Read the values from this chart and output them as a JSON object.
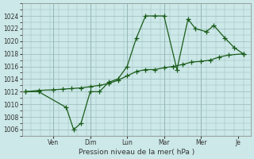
{
  "background_color": "#cce8e8",
  "plot_bg_color": "#cce8e8",
  "grid_color": "#99bbbb",
  "line_color": "#1a5c1a",
  "xlabel": "Pression niveau de la mer( hPa )",
  "ylim": [
    1005,
    1026
  ],
  "yticks": [
    1006,
    1008,
    1010,
    1012,
    1014,
    1016,
    1018,
    1020,
    1022,
    1024
  ],
  "xtick_positions": [
    1.5,
    3.5,
    5.5,
    7.5,
    9.5,
    11.5
  ],
  "xtick_labels": [
    "Ven",
    "Dim",
    "Lun",
    "Mar",
    "Mer",
    "Je"
  ],
  "vlines": [
    1.5,
    3.5,
    5.5,
    7.5,
    9.5
  ],
  "xlim": [
    -0.2,
    12.2
  ],
  "series1_x": [
    0.0,
    0.7,
    2.2,
    2.6,
    3.0,
    3.5,
    4.0,
    4.5,
    5.0,
    5.5,
    6.0,
    6.5,
    7.0,
    7.5,
    8.2,
    8.8,
    9.2,
    9.8,
    10.2,
    10.8,
    11.3,
    11.8
  ],
  "series1_y": [
    1012,
    1012,
    1009.5,
    1006,
    1007,
    1012,
    1012,
    1013.5,
    1014,
    1016,
    1020.5,
    1024,
    1024,
    1024,
    1015.5,
    1023.5,
    1022,
    1021.5,
    1022.5,
    1020.5,
    1019,
    1018
  ],
  "series2_x": [
    0.0,
    0.7,
    1.5,
    2.0,
    2.5,
    3.0,
    3.5,
    4.0,
    4.5,
    5.0,
    5.5,
    6.0,
    6.5,
    7.0,
    7.5,
    8.0,
    8.5,
    9.0,
    9.5,
    10.0,
    10.5,
    11.0,
    11.8
  ],
  "series2_y": [
    1012,
    1012.2,
    1012.3,
    1012.4,
    1012.5,
    1012.6,
    1012.8,
    1013.0,
    1013.3,
    1013.8,
    1014.5,
    1015.2,
    1015.5,
    1015.5,
    1015.8,
    1016.0,
    1016.3,
    1016.7,
    1016.8,
    1017.0,
    1017.5,
    1017.8,
    1018
  ]
}
